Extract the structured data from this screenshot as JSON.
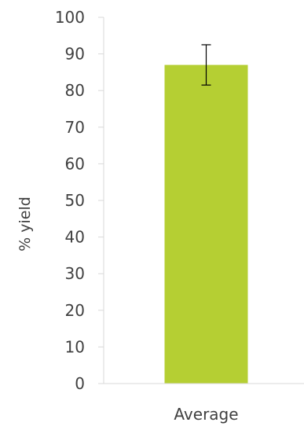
{
  "chart_data": {
    "type": "bar",
    "title": "",
    "xlabel": "",
    "ylabel": "% yield",
    "categories": [
      "Average"
    ],
    "values": [
      87
    ],
    "error_bars": [
      {
        "low": 81.5,
        "high": 92.5
      }
    ],
    "ylim": [
      0,
      100
    ],
    "yticks": [
      "0",
      "10",
      "20",
      "30",
      "40",
      "50",
      "60",
      "70",
      "80",
      "90",
      "100"
    ],
    "grid": false,
    "legend": "none",
    "bar_color": "#b5cf33",
    "axis_color": "#d9d9d9",
    "text_color": "#404040"
  }
}
